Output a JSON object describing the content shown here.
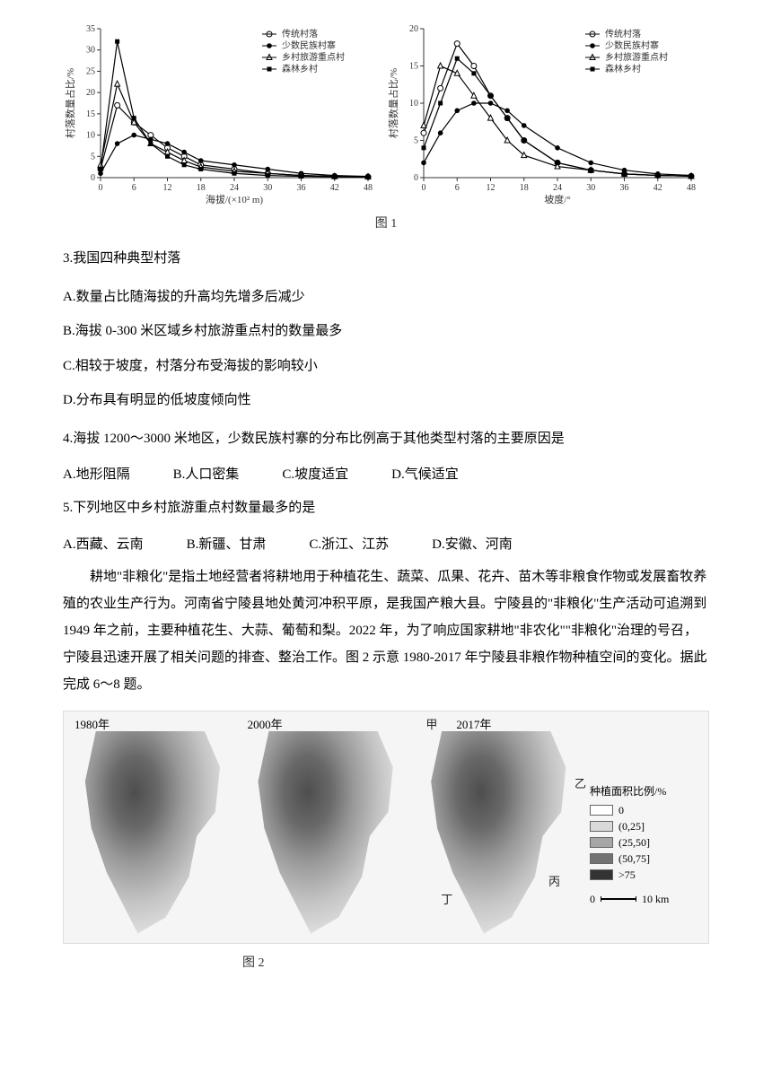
{
  "charts": {
    "left": {
      "type": "line",
      "xlabel": "海拔/(×10² m)",
      "ylabel": "村落数量占比/%",
      "xlim": [
        0,
        48
      ],
      "ylim": [
        0,
        35
      ],
      "xticks": [
        0,
        6,
        12,
        18,
        24,
        30,
        36,
        42,
        48
      ],
      "yticks": [
        0,
        5,
        10,
        15,
        20,
        25,
        30,
        35
      ],
      "background_color": "#ffffff",
      "axis_color": "#333333",
      "line_width": 1.2,
      "legend_items": [
        {
          "label": "传统村落",
          "marker": "circle-open",
          "color": "#000000"
        },
        {
          "label": "少数民族村寨",
          "marker": "circle-filled",
          "color": "#000000"
        },
        {
          "label": "乡村旅游重点村",
          "marker": "triangle-open",
          "color": "#000000"
        },
        {
          "label": "森林乡村",
          "marker": "square-filled",
          "color": "#000000"
        }
      ],
      "series": {
        "traditional": {
          "x": [
            0,
            3,
            6,
            9,
            12,
            15,
            18,
            24,
            30,
            36,
            42,
            48
          ],
          "y": [
            2,
            17,
            13,
            10,
            7,
            5,
            3,
            2,
            1,
            0.5,
            0.3,
            0.2
          ]
        },
        "ethnic": {
          "x": [
            0,
            3,
            6,
            9,
            12,
            15,
            18,
            24,
            30,
            36,
            42,
            48
          ],
          "y": [
            1,
            8,
            10,
            9,
            8,
            6,
            4,
            3,
            2,
            1,
            0.5,
            0.3
          ]
        },
        "tourism": {
          "x": [
            0,
            3,
            6,
            9,
            12,
            15,
            18,
            24,
            30,
            36,
            42,
            48
          ],
          "y": [
            3,
            22,
            13,
            8,
            6,
            4,
            2.5,
            1.5,
            1,
            0.5,
            0.3,
            0.2
          ]
        },
        "forest": {
          "x": [
            0,
            3,
            6,
            9,
            12,
            15,
            18,
            24,
            30,
            36,
            42,
            48
          ],
          "y": [
            2,
            32,
            14,
            8,
            5,
            3,
            2,
            1,
            0.5,
            0.3,
            0.2,
            0.1
          ]
        }
      }
    },
    "right": {
      "type": "line",
      "xlabel": "坡度/°",
      "ylabel": "村落数量占比/%",
      "xlim": [
        0,
        48
      ],
      "ylim": [
        0,
        20
      ],
      "xticks": [
        0,
        6,
        12,
        18,
        24,
        30,
        36,
        42,
        48
      ],
      "yticks": [
        0,
        5,
        10,
        15,
        20
      ],
      "background_color": "#ffffff",
      "axis_color": "#333333",
      "line_width": 1.2,
      "legend_items": [
        {
          "label": "传统村落",
          "marker": "circle-open",
          "color": "#000000"
        },
        {
          "label": "少数民族村寨",
          "marker": "circle-filled",
          "color": "#000000"
        },
        {
          "label": "乡村旅游重点村",
          "marker": "triangle-open",
          "color": "#000000"
        },
        {
          "label": "森林乡村",
          "marker": "square-filled",
          "color": "#000000"
        }
      ],
      "series": {
        "traditional": {
          "x": [
            0,
            3,
            6,
            9,
            12,
            15,
            18,
            24,
            30,
            36,
            42,
            48
          ],
          "y": [
            6,
            12,
            18,
            15,
            11,
            8,
            5,
            2,
            1,
            0.5,
            0.3,
            0.2
          ]
        },
        "ethnic": {
          "x": [
            0,
            3,
            6,
            9,
            12,
            15,
            18,
            24,
            30,
            36,
            42,
            48
          ],
          "y": [
            2,
            6,
            9,
            10,
            10,
            9,
            7,
            4,
            2,
            1,
            0.5,
            0.3
          ]
        },
        "tourism": {
          "x": [
            0,
            3,
            6,
            9,
            12,
            15,
            18,
            24,
            30,
            36,
            42,
            48
          ],
          "y": [
            7,
            15,
            14,
            11,
            8,
            5,
            3,
            1.5,
            1,
            0.5,
            0.3,
            0.2
          ]
        },
        "forest": {
          "x": [
            0,
            3,
            6,
            9,
            12,
            15,
            18,
            24,
            30,
            36,
            42,
            48
          ],
          "y": [
            4,
            10,
            16,
            14,
            11,
            8,
            5,
            2,
            1,
            0.5,
            0.3,
            0.2
          ]
        }
      }
    },
    "caption": "图 1"
  },
  "q3": {
    "stem": "3.我国四种典型村落",
    "A": "A.数量占比随海拔的升高均先增多后减少",
    "B": "B.海拔 0-300 米区域乡村旅游重点村的数量最多",
    "C": "C.相较于坡度，村落分布受海拔的影响较小",
    "D": "D.分布具有明显的低坡度倾向性"
  },
  "q4": {
    "stem": "4.海拔 1200～3000 米地区，少数民族村寨的分布比例高于其他类型村落的主要原因是",
    "A": "A.地形阻隔",
    "B": "B.人口密集",
    "C": "C.坡度适宜",
    "D": "D.气候适宜"
  },
  "q5": {
    "stem": "5.下列地区中乡村旅游重点村数量最多的是",
    "A": "A.西藏、云南",
    "B": "B.新疆、甘肃",
    "C": "C.浙江、江苏",
    "D": "D.安徽、河南"
  },
  "passage": "耕地\"非粮化\"是指土地经营者将耕地用于种植花生、蔬菜、瓜果、花卉、苗木等非粮食作物或发展畜牧养殖的农业生产行为。河南省宁陵县地处黄河冲积平原，是我国产粮大县。宁陵县的\"非粮化\"生产活动可追溯到 1949 年之前，主要种植花生、大蒜、葡萄和梨。2022 年，为了响应国家耕地\"非农化\"\"非粮化\"治理的号召，宁陵县迅速开展了相关问题的排查、整治工作。图 2 示意 1980-2017 年宁陵县非粮作物种植空间的变化。据此完成 6～8 题。",
  "maps": {
    "years": [
      "1980年",
      "2000年",
      "2017年"
    ],
    "markers": {
      "jia": "甲",
      "yi": "乙",
      "bing": "丙",
      "ding": "丁"
    },
    "legend_title": "种植面积比例/%",
    "legend": [
      {
        "label": "0",
        "fill": "#ffffff"
      },
      {
        "label": "(0,25]",
        "fill": "#d9d9d9"
      },
      {
        "label": "(25,50]",
        "fill": "#a6a6a6"
      },
      {
        "label": "(50,75]",
        "fill": "#737373"
      },
      {
        "label": ">75",
        "fill": "#333333"
      }
    ],
    "scale": {
      "left": "0",
      "right": "10 km"
    },
    "caption": "图 2"
  }
}
